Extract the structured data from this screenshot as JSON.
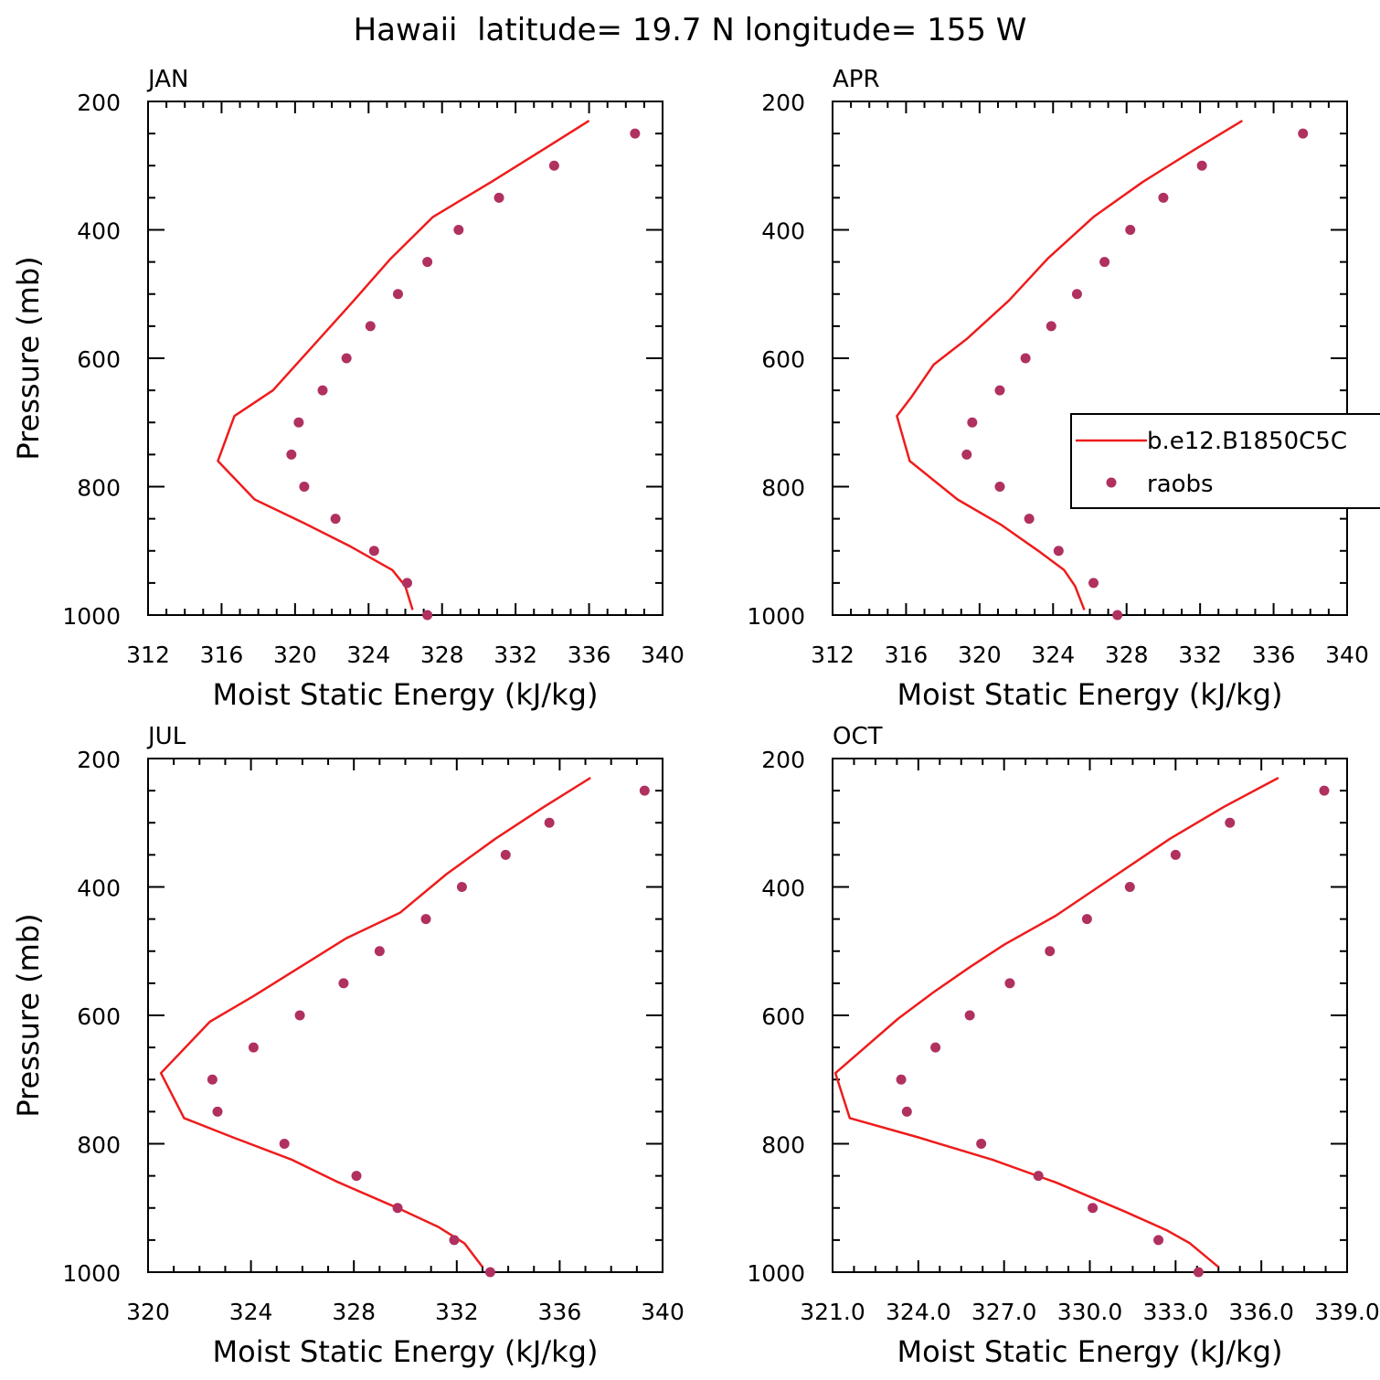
{
  "figure": {
    "title": "Hawaii  latitude= 19.7 N longitude= 155 W"
  },
  "colors": {
    "model": "#ee1c1c",
    "obs": "#b03060",
    "axis": "#000000"
  },
  "chart_data": [
    {
      "type": "line",
      "panel_label": "JAN",
      "xlabel": "Moist Static Energy (kJ/kg)",
      "ylabel": "Pressure (mb)",
      "xlim": [
        312,
        340
      ],
      "ylim": [
        1000,
        200
      ],
      "x_ticks": [
        "312",
        "316",
        "320",
        "324",
        "328",
        "332",
        "336",
        "340"
      ],
      "y_ticks": [
        "200",
        "400",
        "600",
        "800",
        "1000"
      ],
      "series": [
        {
          "name": "b.e12.B1850C5C",
          "kind": "line",
          "points": [
            [
              336.0,
              230
            ],
            [
              333.5,
              275
            ],
            [
              330.7,
              325
            ],
            [
              327.5,
              380
            ],
            [
              325.2,
              445
            ],
            [
              323.2,
              510
            ],
            [
              321.0,
              580
            ],
            [
              318.8,
              650
            ],
            [
              316.7,
              690
            ],
            [
              315.8,
              760
            ],
            [
              317.8,
              820
            ],
            [
              320.5,
              857
            ],
            [
              323.0,
              893
            ],
            [
              325.3,
              930
            ],
            [
              326.0,
              955
            ],
            [
              326.4,
              992
            ]
          ]
        },
        {
          "name": "raobs",
          "kind": "points",
          "points": [
            [
              338.5,
              250
            ],
            [
              334.1,
              300
            ],
            [
              331.1,
              350
            ],
            [
              328.9,
              400
            ],
            [
              327.2,
              450
            ],
            [
              325.6,
              500
            ],
            [
              324.1,
              550
            ],
            [
              322.8,
              600
            ],
            [
              321.5,
              650
            ],
            [
              320.2,
              700
            ],
            [
              319.8,
              750
            ],
            [
              320.5,
              800
            ],
            [
              322.2,
              850
            ],
            [
              324.3,
              900
            ],
            [
              326.1,
              950
            ],
            [
              327.2,
              1000
            ]
          ]
        }
      ]
    },
    {
      "type": "line",
      "panel_label": "APR",
      "xlabel": "Moist Static Energy (kJ/kg)",
      "ylabel": "",
      "xlim": [
        312,
        340
      ],
      "ylim": [
        1000,
        200
      ],
      "x_ticks": [
        "312",
        "316",
        "320",
        "324",
        "328",
        "332",
        "336",
        "340"
      ],
      "y_ticks": [
        "200",
        "400",
        "600",
        "800",
        "1000"
      ],
      "legend": {
        "position": "right",
        "entries": [
          "b.e12.B1850C5C",
          "raobs"
        ]
      },
      "series": [
        {
          "name": "b.e12.B1850C5C",
          "kind": "line",
          "points": [
            [
              334.3,
              230
            ],
            [
              331.7,
              275
            ],
            [
              328.9,
              325
            ],
            [
              326.2,
              380
            ],
            [
              323.7,
              445
            ],
            [
              321.6,
              510
            ],
            [
              319.3,
              570
            ],
            [
              317.5,
              610
            ],
            [
              316.3,
              660
            ],
            [
              315.5,
              690
            ],
            [
              316.2,
              760
            ],
            [
              318.8,
              820
            ],
            [
              321.2,
              860
            ],
            [
              323.2,
              900
            ],
            [
              324.6,
              930
            ],
            [
              325.2,
              955
            ],
            [
              325.7,
              992
            ]
          ]
        },
        {
          "name": "raobs",
          "kind": "points",
          "points": [
            [
              337.6,
              250
            ],
            [
              332.1,
              300
            ],
            [
              330.0,
              350
            ],
            [
              328.2,
              400
            ],
            [
              326.8,
              450
            ],
            [
              325.3,
              500
            ],
            [
              323.9,
              550
            ],
            [
              322.5,
              600
            ],
            [
              321.1,
              650
            ],
            [
              319.6,
              700
            ],
            [
              319.3,
              750
            ],
            [
              321.1,
              800
            ],
            [
              322.7,
              850
            ],
            [
              324.3,
              900
            ],
            [
              326.2,
              950
            ],
            [
              327.5,
              1000
            ]
          ]
        }
      ]
    },
    {
      "type": "line",
      "panel_label": "JUL",
      "xlabel": "Moist Static Energy (kJ/kg)",
      "ylabel": "Pressure (mb)",
      "xlim": [
        320,
        340
      ],
      "ylim": [
        1000,
        200
      ],
      "x_ticks": [
        "320",
        "324",
        "328",
        "332",
        "336",
        "340"
      ],
      "y_ticks": [
        "200",
        "400",
        "600",
        "800",
        "1000"
      ],
      "series": [
        {
          "name": "b.e12.B1850C5C",
          "kind": "line",
          "points": [
            [
              337.2,
              230
            ],
            [
              335.4,
              275
            ],
            [
              333.5,
              325
            ],
            [
              331.6,
              380
            ],
            [
              329.8,
              440
            ],
            [
              327.7,
              480
            ],
            [
              325.9,
              525
            ],
            [
              324.1,
              570
            ],
            [
              322.4,
              610
            ],
            [
              320.5,
              690
            ],
            [
              321.4,
              760
            ],
            [
              323.3,
              790
            ],
            [
              325.6,
              825
            ],
            [
              327.4,
              860
            ],
            [
              329.7,
              900
            ],
            [
              331.3,
              930
            ],
            [
              332.3,
              955
            ],
            [
              333.0,
              992
            ]
          ]
        },
        {
          "name": "raobs",
          "kind": "points",
          "points": [
            [
              339.3,
              250
            ],
            [
              335.6,
              300
            ],
            [
              333.9,
              350
            ],
            [
              332.2,
              400
            ],
            [
              330.8,
              450
            ],
            [
              329.0,
              500
            ],
            [
              327.6,
              550
            ],
            [
              325.9,
              600
            ],
            [
              324.1,
              650
            ],
            [
              322.5,
              700
            ],
            [
              322.7,
              750
            ],
            [
              325.3,
              800
            ],
            [
              328.1,
              850
            ],
            [
              329.7,
              900
            ],
            [
              331.9,
              950
            ],
            [
              333.3,
              1000
            ]
          ]
        }
      ]
    },
    {
      "type": "line",
      "panel_label": "OCT",
      "xlabel": "Moist Static Energy (kJ/kg)",
      "ylabel": "",
      "xlim": [
        321,
        339
      ],
      "ylim": [
        1000,
        200
      ],
      "x_ticks": [
        "321.0",
        "324.0",
        "327.0",
        "330.0",
        "333.0",
        "336.0",
        "339.0"
      ],
      "y_ticks": [
        "200",
        "400",
        "600",
        "800",
        "1000"
      ],
      "series": [
        {
          "name": "b.e12.B1850C5C",
          "kind": "line",
          "points": [
            [
              336.6,
              230
            ],
            [
              334.7,
              275
            ],
            [
              332.8,
              325
            ],
            [
              330.8,
              385
            ],
            [
              328.8,
              445
            ],
            [
              327.0,
              490
            ],
            [
              325.8,
              525
            ],
            [
              324.5,
              565
            ],
            [
              323.3,
              605
            ],
            [
              321.1,
              690
            ],
            [
              321.6,
              760
            ],
            [
              324.0,
              790
            ],
            [
              326.6,
              825
            ],
            [
              328.8,
              860
            ],
            [
              331.2,
              905
            ],
            [
              332.7,
              935
            ],
            [
              333.5,
              955
            ],
            [
              334.5,
              992
            ]
          ]
        },
        {
          "name": "raobs",
          "kind": "points",
          "points": [
            [
              338.2,
              250
            ],
            [
              334.9,
              300
            ],
            [
              333.0,
              350
            ],
            [
              331.4,
              400
            ],
            [
              329.9,
              450
            ],
            [
              328.6,
              500
            ],
            [
              327.2,
              550
            ],
            [
              325.8,
              600
            ],
            [
              324.6,
              650
            ],
            [
              323.4,
              700
            ],
            [
              323.6,
              750
            ],
            [
              326.2,
              800
            ],
            [
              328.2,
              850
            ],
            [
              330.1,
              900
            ],
            [
              332.4,
              950
            ],
            [
              333.8,
              1000
            ]
          ]
        }
      ]
    }
  ]
}
